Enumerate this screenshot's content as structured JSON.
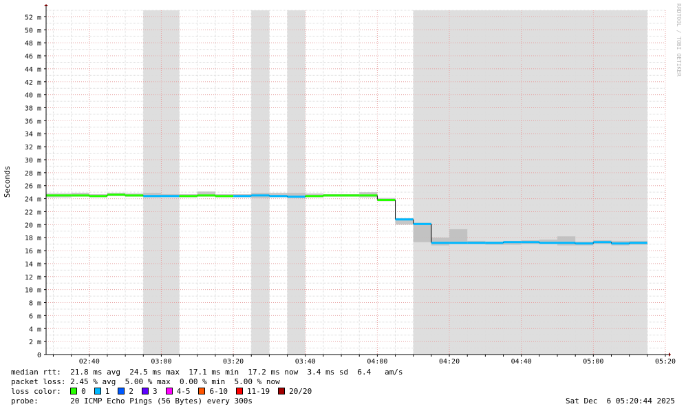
{
  "chart_data": {
    "type": "line",
    "ylabel": "Seconds",
    "watermark": "RRDTOOL / TOBI OETIKER",
    "x_range": [
      "02:28",
      "05:20"
    ],
    "y_range": [
      0,
      53
    ],
    "y_unit": "ms",
    "y_ticks": [
      "0",
      "2 m",
      "4 m",
      "6 m",
      "8 m",
      "10 m",
      "12 m",
      "14 m",
      "16 m",
      "18 m",
      "20 m",
      "22 m",
      "24 m",
      "26 m",
      "28 m",
      "30 m",
      "32 m",
      "34 m",
      "36 m",
      "38 m",
      "40 m",
      "42 m",
      "44 m",
      "46 m",
      "48 m",
      "50 m",
      "52 m"
    ],
    "x_ticks": [
      "02:40",
      "03:00",
      "03:20",
      "03:40",
      "04:00",
      "04:20",
      "04:40",
      "05:00",
      "05:20"
    ],
    "grid": true,
    "step_minutes": 5,
    "loss_periods": [
      [
        "02:55",
        "03:05"
      ],
      [
        "03:25",
        "03:30"
      ],
      [
        "03:35",
        "03:40"
      ],
      [
        "04:10",
        "05:15"
      ]
    ],
    "median_series": [
      {
        "t": "02:28",
        "ms": 24.5,
        "loss": 0
      },
      {
        "t": "02:35",
        "ms": 24.5,
        "loss": 0
      },
      {
        "t": "02:40",
        "ms": 24.4,
        "loss": 0
      },
      {
        "t": "02:45",
        "ms": 24.6,
        "loss": 0
      },
      {
        "t": "02:50",
        "ms": 24.5,
        "loss": 0
      },
      {
        "t": "02:55",
        "ms": 24.4,
        "loss": 1
      },
      {
        "t": "03:00",
        "ms": 24.4,
        "loss": 1
      },
      {
        "t": "03:05",
        "ms": 24.4,
        "loss": 0
      },
      {
        "t": "03:10",
        "ms": 24.5,
        "loss": 0
      },
      {
        "t": "03:15",
        "ms": 24.4,
        "loss": 0
      },
      {
        "t": "03:20",
        "ms": 24.4,
        "loss": 1
      },
      {
        "t": "03:25",
        "ms": 24.5,
        "loss": 1
      },
      {
        "t": "03:30",
        "ms": 24.4,
        "loss": 1
      },
      {
        "t": "03:35",
        "ms": 24.3,
        "loss": 1
      },
      {
        "t": "03:40",
        "ms": 24.4,
        "loss": 0
      },
      {
        "t": "03:45",
        "ms": 24.5,
        "loss": 0
      },
      {
        "t": "03:50",
        "ms": 24.5,
        "loss": 0
      },
      {
        "t": "03:55",
        "ms": 24.5,
        "loss": 0
      },
      {
        "t": "04:00",
        "ms": 23.8,
        "loss": 0
      },
      {
        "t": "04:05",
        "ms": 20.8,
        "loss": 1
      },
      {
        "t": "04:10",
        "ms": 20.1,
        "loss": 1
      },
      {
        "t": "04:15",
        "ms": 17.2,
        "loss": 1
      },
      {
        "t": "04:20",
        "ms": 17.2,
        "loss": 1
      },
      {
        "t": "04:25",
        "ms": 17.2,
        "loss": 1
      },
      {
        "t": "04:30",
        "ms": 17.2,
        "loss": 1
      },
      {
        "t": "04:35",
        "ms": 17.3,
        "loss": 1
      },
      {
        "t": "04:40",
        "ms": 17.3,
        "loss": 1
      },
      {
        "t": "04:45",
        "ms": 17.2,
        "loss": 1
      },
      {
        "t": "04:50",
        "ms": 17.2,
        "loss": 1
      },
      {
        "t": "04:55",
        "ms": 17.1,
        "loss": 1
      },
      {
        "t": "05:00",
        "ms": 17.3,
        "loss": 1
      },
      {
        "t": "05:05",
        "ms": 17.1,
        "loss": 1
      },
      {
        "t": "05:10",
        "ms": 17.2,
        "loss": 1
      }
    ],
    "smoke_bands": [
      {
        "t": "02:28",
        "lo": 24.2,
        "hi": 24.8
      },
      {
        "t": "02:35",
        "lo": 24.3,
        "hi": 24.9
      },
      {
        "t": "02:40",
        "lo": 24.2,
        "hi": 24.7
      },
      {
        "t": "02:45",
        "lo": 24.4,
        "hi": 24.9
      },
      {
        "t": "02:50",
        "lo": 24.3,
        "hi": 24.8
      },
      {
        "t": "02:55",
        "lo": 24.2,
        "hi": 24.9
      },
      {
        "t": "03:00",
        "lo": 24.3,
        "hi": 24.7
      },
      {
        "t": "03:05",
        "lo": 24.2,
        "hi": 24.7
      },
      {
        "t": "03:10",
        "lo": 24.3,
        "hi": 25.1
      },
      {
        "t": "03:15",
        "lo": 24.2,
        "hi": 24.7
      },
      {
        "t": "03:20",
        "lo": 24.2,
        "hi": 24.7
      },
      {
        "t": "03:25",
        "lo": 24.1,
        "hi": 24.9
      },
      {
        "t": "03:30",
        "lo": 24.2,
        "hi": 24.9
      },
      {
        "t": "03:35",
        "lo": 24.1,
        "hi": 24.9
      },
      {
        "t": "03:40",
        "lo": 24.2,
        "hi": 24.8
      },
      {
        "t": "03:45",
        "lo": 24.3,
        "hi": 24.7
      },
      {
        "t": "03:50",
        "lo": 24.3,
        "hi": 24.7
      },
      {
        "t": "03:55",
        "lo": 24.2,
        "hi": 25.0
      },
      {
        "t": "04:00",
        "lo": 23.6,
        "hi": 24.1
      },
      {
        "t": "04:05",
        "lo": 20.0,
        "hi": 21.0
      },
      {
        "t": "04:10",
        "lo": 17.3,
        "hi": 20.3
      },
      {
        "t": "04:15",
        "lo": 16.8,
        "hi": 18.0
      },
      {
        "t": "04:20",
        "lo": 17.0,
        "hi": 19.3
      },
      {
        "t": "04:25",
        "lo": 17.0,
        "hi": 17.5
      },
      {
        "t": "04:30",
        "lo": 16.9,
        "hi": 17.4
      },
      {
        "t": "04:35",
        "lo": 16.9,
        "hi": 17.5
      },
      {
        "t": "04:40",
        "lo": 17.0,
        "hi": 17.6
      },
      {
        "t": "04:45",
        "lo": 17.0,
        "hi": 17.7
      },
      {
        "t": "04:50",
        "lo": 16.8,
        "hi": 18.2
      },
      {
        "t": "04:55",
        "lo": 16.8,
        "hi": 17.4
      },
      {
        "t": "05:00",
        "lo": 17.0,
        "hi": 17.6
      },
      {
        "t": "05:05",
        "lo": 16.8,
        "hi": 17.5
      },
      {
        "t": "05:10",
        "lo": 16.9,
        "hi": 17.5
      }
    ],
    "end_time": "05:15"
  },
  "legend": {
    "median_rtt_label": "median rtt:",
    "median_rtt_value": "21.8 ms avg  24.5 ms max  17.1 ms min  17.2 ms now  3.4 ms sd  6.4   am/s",
    "packet_loss_label": "packet loss:",
    "packet_loss_value": "2.45 % avg  5.00 % max  0.00 % min  5.00 % now",
    "loss_color_label": "loss color:",
    "loss_colors": [
      {
        "label": "0",
        "color": "#26ff00"
      },
      {
        "label": "1",
        "color": "#00b8ff"
      },
      {
        "label": "2",
        "color": "#0059ff"
      },
      {
        "label": "3",
        "color": "#5e00ff"
      },
      {
        "label": "4-5",
        "color": "#ff00ff"
      },
      {
        "label": "6-10",
        "color": "#ff5500"
      },
      {
        "label": "11-19",
        "color": "#ff0000"
      },
      {
        "label": "20/20",
        "color": "#a10000"
      }
    ],
    "probe_label": "probe:",
    "probe_value": "20 ICMP Echo Pings (56 Bytes) every 300s",
    "timestamp": "Sat Dec  6 05:20:44 2025"
  }
}
